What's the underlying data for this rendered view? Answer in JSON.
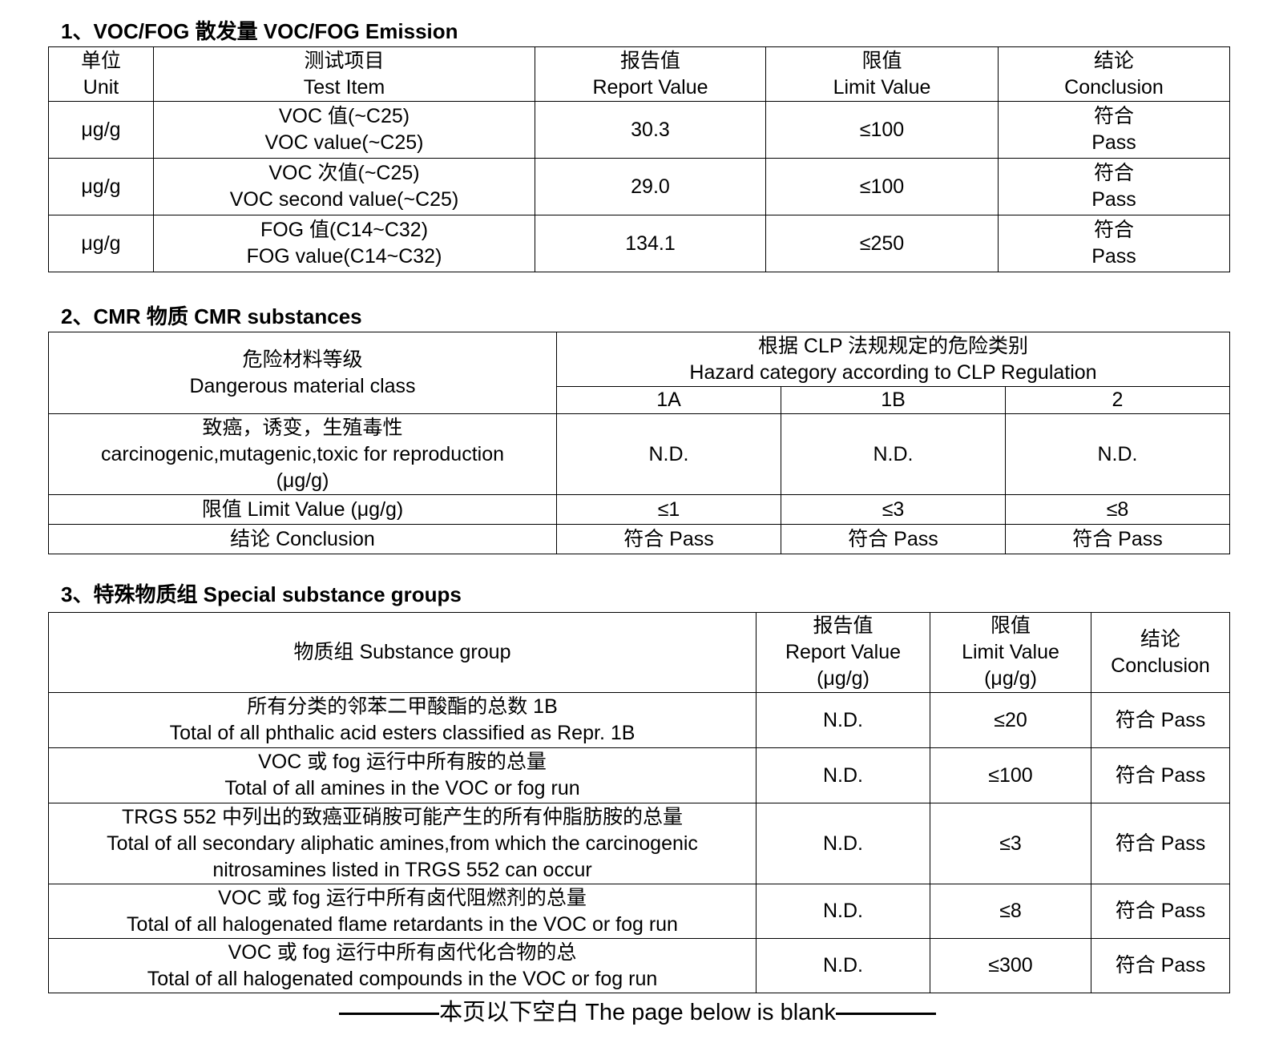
{
  "section1": {
    "title": "1、VOC/FOG 散发量 VOC/FOG Emission",
    "headers": [
      [
        "单位",
        "Unit"
      ],
      [
        "测试项目",
        "Test Item"
      ],
      [
        "报告值",
        "Report Value"
      ],
      [
        "限值",
        "Limit Value"
      ],
      [
        "结论",
        "Conclusion"
      ]
    ],
    "rows": [
      {
        "unit": "μg/g",
        "item_cn": "VOC 值(~C25)",
        "item_en": "VOC value(~C25)",
        "report": "30.3",
        "limit": "≤100",
        "concl_cn": "符合",
        "concl_en": "Pass"
      },
      {
        "unit": "μg/g",
        "item_cn": "VOC 次值(~C25)",
        "item_en": "VOC second value(~C25)",
        "report": "29.0",
        "limit": "≤100",
        "concl_cn": "符合",
        "concl_en": "Pass"
      },
      {
        "unit": "μg/g",
        "item_cn": "FOG 值(C14~C32)",
        "item_en": "FOG value(C14~C32)",
        "report": "134.1",
        "limit": "≤250",
        "concl_cn": "符合",
        "concl_en": "Pass"
      }
    ]
  },
  "section2": {
    "title": "2、CMR 物质 CMR substances",
    "class_cn": "危险材料等级",
    "class_en": "Dangerous material class",
    "hazard_cn": "根据 CLP 法规规定的危险类别",
    "hazard_en": "Hazard category according to CLP Regulation",
    "categories": [
      "1A",
      "1B",
      "2"
    ],
    "cmr_cn": "致癌，诱变，生殖毒性",
    "cmr_en": "carcinogenic,mutagenic,toxic for reproduction",
    "cmr_unit": "(μg/g)",
    "cmr_values": [
      "N.D.",
      "N.D.",
      "N.D."
    ],
    "limit_label": "限值 Limit Value (μg/g)",
    "limits": [
      "≤1",
      "≤3",
      "≤8"
    ],
    "conclusion_label": "结论 Conclusion",
    "conclusions": [
      "符合 Pass",
      "符合 Pass",
      "符合 Pass"
    ]
  },
  "section3": {
    "title": "3、特殊物质组 Special substance groups",
    "headers": {
      "group": "物质组 Substance group",
      "report": [
        "报告值",
        "Report Value",
        "(μg/g)"
      ],
      "limit": [
        "限值",
        "Limit Value",
        "(μg/g)"
      ],
      "conclusion": [
        "结论",
        "Conclusion"
      ]
    },
    "rows": [
      {
        "lines": [
          "所有分类的邻苯二甲酸酯的总数  1B",
          "Total of all phthalic acid esters classified as Repr. 1B"
        ],
        "report": "N.D.",
        "limit": "≤20",
        "conclusion": "符合 Pass"
      },
      {
        "lines": [
          "VOC 或 fog 运行中所有胺的总量",
          "Total of all amines in the VOC or fog run"
        ],
        "report": "N.D.",
        "limit": "≤100",
        "conclusion": "符合 Pass"
      },
      {
        "lines": [
          "TRGS 552 中列出的致癌亚硝胺可能产生的所有仲脂肪胺的总量",
          "Total of all secondary aliphatic amines,from which the carcinogenic",
          "nitrosamines listed in TRGS 552 can occur"
        ],
        "report": "N.D.",
        "limit": "≤3",
        "conclusion": "符合 Pass"
      },
      {
        "lines": [
          "VOC 或 fog 运行中所有卤代阻燃剂的总量",
          "Total of all halogenated flame retardants in the VOC or fog run"
        ],
        "report": "N.D.",
        "limit": "≤8",
        "conclusion": "符合 Pass"
      },
      {
        "lines": [
          "VOC 或 fog 运行中所有卤代化合物的总",
          "Total of all halogenated compounds in the VOC or fog run"
        ],
        "report": "N.D.",
        "limit": "≤300",
        "conclusion": "符合 Pass"
      }
    ]
  },
  "footer": "本页以下空白 The page below is blank"
}
